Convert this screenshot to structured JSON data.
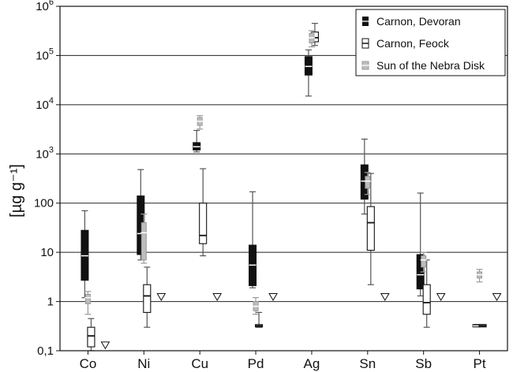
{
  "chart_data": {
    "type": "boxplot",
    "title": "",
    "xlabel": "",
    "ylabel": "[µg g⁻¹]",
    "yscale": "log",
    "ylim": [
      0.1,
      1000000
    ],
    "grid": "horizontal at decades",
    "legend_position": "top-right",
    "categories": [
      "Co",
      "Ni",
      "Cu",
      "Pd",
      "Ag",
      "Sn",
      "Sb",
      "Pt"
    ],
    "y_tick_labels": [
      {
        "value": 0.1,
        "label": "0,1"
      },
      {
        "value": 1,
        "label": "1"
      },
      {
        "value": 10,
        "label": "10"
      },
      {
        "value": 100,
        "label": "100"
      },
      {
        "value": 1000,
        "label": "10",
        "exp": "3"
      },
      {
        "value": 10000,
        "label": "10",
        "exp": "4"
      },
      {
        "value": 100000,
        "label": "10",
        "exp": "5"
      },
      {
        "value": 1000000,
        "label": "10",
        "exp": "6"
      }
    ],
    "series": [
      {
        "name": "Carnon, Devoran",
        "style": "filled",
        "boxes": [
          {
            "category": "Co",
            "min": 1.2,
            "q1": 2.7,
            "median": 8.5,
            "q3": 28,
            "max": 70
          },
          {
            "category": "Ni",
            "min": 7,
            "q1": 9,
            "median": 24,
            "q3": 140,
            "max": 480
          },
          {
            "category": "Cu",
            "min": 1100,
            "q1": 1200,
            "median": 1400,
            "q3": 1700,
            "max": 3000
          },
          {
            "category": "Pd",
            "min": 1.9,
            "q1": 2.1,
            "median": 5.5,
            "q3": 14,
            "max": 170
          },
          {
            "category": "Ag",
            "min": 15000,
            "q1": 40000,
            "median": 60000,
            "q3": 95000,
            "max": 130000
          },
          {
            "category": "Sn",
            "min": 60,
            "q1": 120,
            "median": 280,
            "q3": 600,
            "max": 2000
          },
          {
            "category": "Sb",
            "min": 1.3,
            "q1": 1.8,
            "median": 3.5,
            "q3": 9,
            "max": 160
          },
          {
            "category": "Pt",
            "min": 0.31,
            "q1": 0.31,
            "median": 0.32,
            "q3": 0.34,
            "max": 0.34
          }
        ]
      },
      {
        "name": "Carnon, Feock",
        "style": "open",
        "boxes": [
          {
            "category": "Co",
            "min": 0.1,
            "q1": 0.12,
            "median": 0.2,
            "q3": 0.3,
            "max": 0.45
          },
          {
            "category": "Ni",
            "min": 0.3,
            "q1": 0.6,
            "median": 1.3,
            "q3": 2.2,
            "max": 5
          },
          {
            "category": "Cu",
            "min": 8.5,
            "q1": 15,
            "median": 22,
            "q3": 100,
            "max": 500
          },
          {
            "category": "Pd",
            "min": 0.3,
            "q1": 0.31,
            "median": 0.32,
            "q3": 0.34,
            "max": 0.6
          },
          {
            "category": "Ag",
            "min": 160000,
            "q1": 190000,
            "median": 230000,
            "q3": 300000,
            "max": 450000
          },
          {
            "category": "Sn",
            "min": 2.2,
            "q1": 11,
            "median": 40,
            "q3": 85,
            "max": 400
          },
          {
            "category": "Sb",
            "min": 0.3,
            "q1": 0.55,
            "median": 0.95,
            "q3": 2.2,
            "max": 7
          },
          {
            "category": "Pt",
            "min": 0.31,
            "q1": 0.31,
            "median": 0.32,
            "q3": 0.34,
            "max": 0.34
          }
        ]
      },
      {
        "name": "Sun of the Nebra Disk",
        "style": "gray",
        "boxes": [
          {
            "category": "Co",
            "min": 0.55,
            "q1": 0.9,
            "median": 1.2,
            "q3": 1.4,
            "max": 1.6
          },
          {
            "category": "Ni",
            "min": 6,
            "q1": 7,
            "median": 25,
            "q3": 40,
            "max": 60
          },
          {
            "category": "Cu",
            "min": 3200,
            "q1": 3800,
            "median": 4600,
            "q3": 5500,
            "max": 6000
          },
          {
            "category": "Pd",
            "min": 0.55,
            "q1": 0.65,
            "median": 0.8,
            "q3": 1.0,
            "max": 1.2
          },
          {
            "category": "Ag",
            "min": 150000,
            "q1": 180000,
            "median": 230000,
            "q3": 280000,
            "max": 320000
          },
          {
            "category": "Sn",
            "min": 150,
            "q1": 200,
            "median": 280,
            "q3": 350,
            "max": 420
          },
          {
            "category": "Sb",
            "min": 4,
            "q1": 5,
            "median": 7,
            "q3": 8.5,
            "max": 10
          },
          {
            "category": "Pt",
            "min": 2.5,
            "q1": 3,
            "median": 3.5,
            "q3": 4,
            "max": 4.5
          }
        ]
      }
    ],
    "detection_limits": [
      {
        "category": "Co",
        "value": 0.13
      },
      {
        "category": "Ni",
        "value": 1.25
      },
      {
        "category": "Cu",
        "value": 1.25
      },
      {
        "category": "Pd",
        "value": 1.25
      },
      {
        "category": "Sn",
        "value": 1.25
      },
      {
        "category": "Sb",
        "value": 1.25
      },
      {
        "category": "Pt",
        "value": 1.25
      }
    ],
    "colors": {
      "Carnon, Devoran": "#111111",
      "Carnon, Feock": "#222222",
      "Sun of the Nebra Disk": "#9a9a9a",
      "whisker": "#555555",
      "grid": "#222222"
    }
  }
}
